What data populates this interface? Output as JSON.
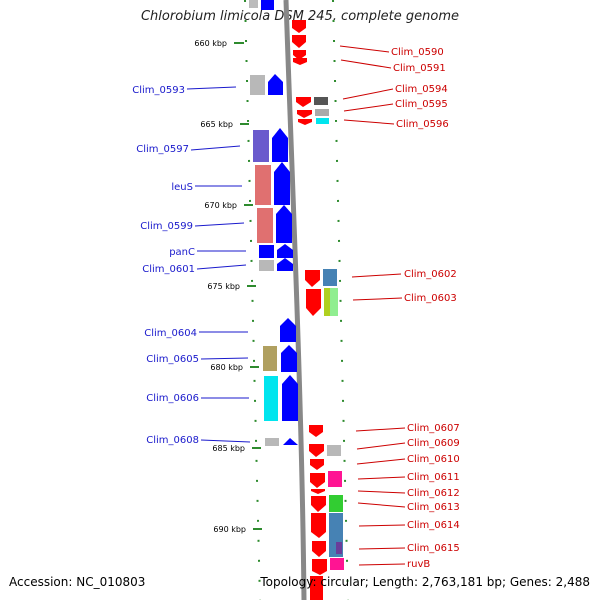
{
  "title": "Chlorobium limicola DSM 245, complete genome",
  "accession": "Accession: NC_010803",
  "topology": "Topology: circular; Length: 2,763,181 bp; Genes: 2,488",
  "scale_ticks": [
    {
      "label": "660 kbp"
    },
    {
      "label": "665 kbp"
    },
    {
      "label": "670 kbp"
    },
    {
      "label": "675 kbp"
    },
    {
      "label": "680 kbp"
    },
    {
      "label": "685 kbp"
    },
    {
      "label": "690 kbp"
    }
  ],
  "colors": {
    "left_label": "#1a1acc",
    "right_label": "#cc0000",
    "strand_forward": "#0000ff",
    "strand_reverse": "#ff0000",
    "tick": "#2e8b2e",
    "backbone": "#888888"
  },
  "left_genes": [
    {
      "label": "Clim_0593"
    },
    {
      "label": "Clim_0597"
    },
    {
      "label": "leuS"
    },
    {
      "label": "Clim_0599"
    },
    {
      "label": "panC"
    },
    {
      "label": "Clim_0601"
    },
    {
      "label": "Clim_0604"
    },
    {
      "label": "Clim_0605"
    },
    {
      "label": "Clim_0606"
    },
    {
      "label": "Clim_0608"
    }
  ],
  "right_genes": [
    {
      "label": "Clim_0590"
    },
    {
      "label": "Clim_0591"
    },
    {
      "label": "Clim_0594"
    },
    {
      "label": "Clim_0595"
    },
    {
      "label": "Clim_0596"
    },
    {
      "label": "Clim_0602"
    },
    {
      "label": "Clim_0603"
    },
    {
      "label": "Clim_0607"
    },
    {
      "label": "Clim_0609"
    },
    {
      "label": "Clim_0610"
    },
    {
      "label": "Clim_0611"
    },
    {
      "label": "Clim_0612"
    },
    {
      "label": "Clim_0613"
    },
    {
      "label": "Clim_0614"
    },
    {
      "label": "Clim_0615"
    },
    {
      "label": "ruvB"
    }
  ]
}
